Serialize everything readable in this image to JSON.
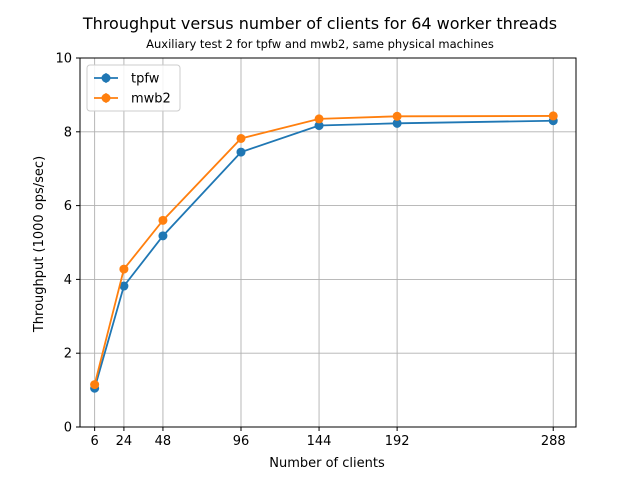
{
  "chart_data": {
    "type": "line",
    "title": "Throughput versus number of clients for 64 worker threads",
    "subtitle": "Auxiliary test 2 for tpfw and mwb2, same physical machines",
    "xlabel": "Number of clients",
    "ylabel": "Throughput (1000 ops/sec)",
    "x": [
      6,
      24,
      48,
      96,
      144,
      192,
      288
    ],
    "xlim": [
      -3,
      302
    ],
    "ylim": [
      0,
      10
    ],
    "xticks": [
      6,
      24,
      48,
      96,
      144,
      192,
      288
    ],
    "yticks": [
      0,
      2,
      4,
      6,
      8,
      10
    ],
    "grid": true,
    "legend_position": "top-left",
    "series": [
      {
        "name": "tpfw",
        "color": "#1f77b4",
        "values": [
          1.05,
          3.82,
          5.18,
          7.45,
          8.17,
          8.23,
          8.3
        ]
      },
      {
        "name": "mwb2",
        "color": "#ff7f0e",
        "values": [
          1.15,
          4.28,
          5.6,
          7.82,
          8.35,
          8.42,
          8.43
        ]
      }
    ]
  }
}
